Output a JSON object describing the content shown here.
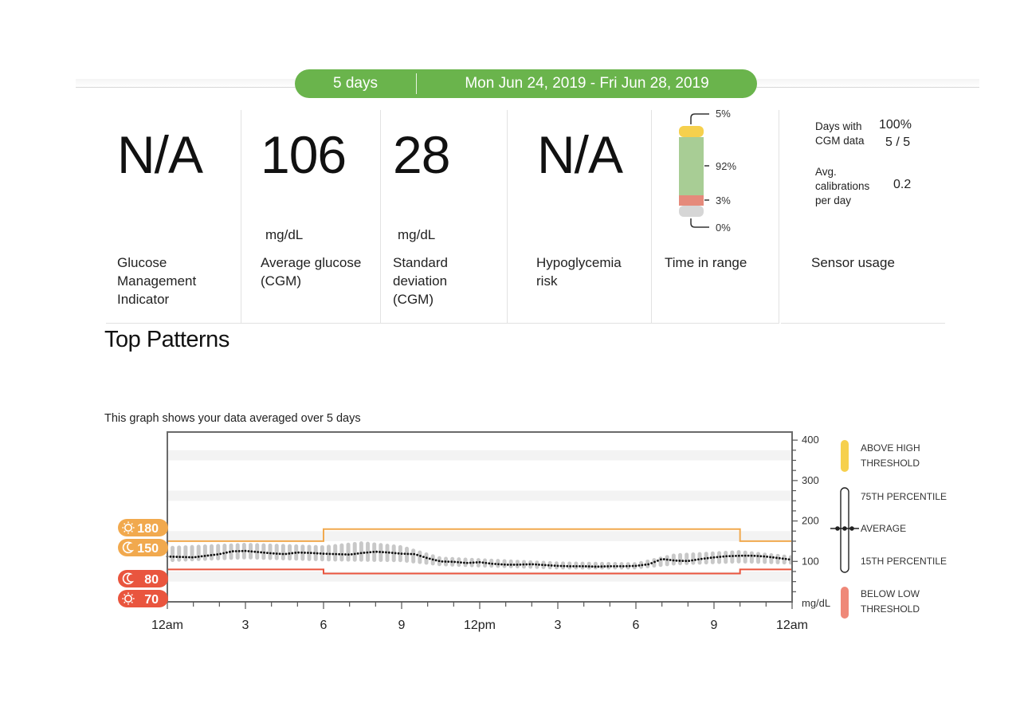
{
  "header": {
    "days": "5 days",
    "date_range": "Mon Jun 24, 2019 - Fri Jun 28, 2019"
  },
  "cards": {
    "gmi": {
      "value": "N/A",
      "label": "Glucose\nManagement\nIndicator"
    },
    "avg": {
      "value": "106",
      "unit": "mg/dL",
      "label": "Average glucose\n(CGM)"
    },
    "sd": {
      "value": "28",
      "unit": "mg/dL",
      "label": "Standard\ndeviation\n(CGM)"
    },
    "hypo": {
      "value": "N/A",
      "label": "Hypoglycemia\nrisk"
    },
    "tir": {
      "label": "Time in range",
      "high": "5%",
      "in_range": "92%",
      "low": "3%",
      "very_low": "0%"
    },
    "sensor": {
      "label": "Sensor usage",
      "days_label": "Days with\nCGM data",
      "days_pct": "100%",
      "days_count": "5 / 5",
      "cal_label": "Avg.\ncalibrations\nper day",
      "cal_value": "0.2"
    }
  },
  "section_title": "Top Patterns",
  "graph_note": "This graph shows your data averaged over 5 days",
  "colors": {
    "green": "#6ab44c",
    "high": "#f6d04d",
    "in_range": "#a8cd95",
    "low": "#e58a7b",
    "very_low": "#d6d6d6",
    "orange": "#f1a94e",
    "red": "#e9553e"
  },
  "chart_data": {
    "type": "area",
    "x_ticks": [
      "12am",
      "3",
      "6",
      "9",
      "12pm",
      "3",
      "6",
      "9",
      "12am"
    ],
    "x_range_hours": [
      0,
      24
    ],
    "y_ticks": [
      "400",
      "300",
      "200",
      "100"
    ],
    "y_unit": "mg/dL",
    "ylim": [
      0,
      420
    ],
    "threshold_badges": [
      {
        "kind": "day-high",
        "value": "180",
        "icon": "sun-icon"
      },
      {
        "kind": "night-high",
        "value": "150",
        "icon": "moon-icon"
      },
      {
        "kind": "night-low",
        "value": "80",
        "icon": "moon-icon"
      },
      {
        "kind": "day-low",
        "value": "70",
        "icon": "sun-icon"
      }
    ],
    "high_threshold_line": [
      [
        0,
        150
      ],
      [
        6,
        150
      ],
      [
        6,
        180
      ],
      [
        22,
        180
      ],
      [
        22,
        150
      ],
      [
        24,
        150
      ]
    ],
    "low_threshold_line": [
      [
        0,
        80
      ],
      [
        6,
        80
      ],
      [
        6,
        70
      ],
      [
        22,
        70
      ],
      [
        22,
        80
      ],
      [
        24,
        80
      ]
    ],
    "average_points": [
      [
        0,
        112
      ],
      [
        1,
        110
      ],
      [
        2,
        118
      ],
      [
        2.5,
        125
      ],
      [
        3,
        126
      ],
      [
        3.5,
        123
      ],
      [
        4,
        120
      ],
      [
        4.5,
        118
      ],
      [
        5,
        122
      ],
      [
        5.5,
        121
      ],
      [
        6,
        119
      ],
      [
        6.5,
        118
      ],
      [
        7,
        117
      ],
      [
        7.5,
        121
      ],
      [
        8,
        124
      ],
      [
        8.5,
        122
      ],
      [
        9,
        119
      ],
      [
        9.5,
        118
      ],
      [
        10,
        108
      ],
      [
        10.5,
        100
      ],
      [
        11,
        99
      ],
      [
        11.5,
        96
      ],
      [
        12,
        98
      ],
      [
        12.5,
        94
      ],
      [
        13,
        92
      ],
      [
        13.5,
        92
      ],
      [
        14,
        93
      ],
      [
        14.5,
        91
      ],
      [
        15,
        89
      ],
      [
        15.5,
        88
      ],
      [
        16,
        88
      ],
      [
        16.5,
        87
      ],
      [
        17,
        88
      ],
      [
        17.5,
        88
      ],
      [
        18,
        89
      ],
      [
        18.5,
        93
      ],
      [
        19,
        106
      ],
      [
        19.5,
        102
      ],
      [
        20,
        101
      ],
      [
        20.5,
        106
      ],
      [
        21,
        110
      ],
      [
        21.5,
        113
      ],
      [
        22,
        114
      ],
      [
        22.5,
        114
      ],
      [
        23,
        112
      ],
      [
        23.5,
        108
      ],
      [
        24,
        104
      ]
    ],
    "percentile_band": {
      "p15": [
        [
          0,
          98
        ],
        [
          3,
          105
        ],
        [
          6,
          100
        ],
        [
          9,
          98
        ],
        [
          10.5,
          88
        ],
        [
          12,
          85
        ],
        [
          15,
          80
        ],
        [
          18,
          80
        ],
        [
          19.5,
          90
        ],
        [
          22,
          95
        ],
        [
          24,
          92
        ]
      ],
      "p75": [
        [
          0,
          138
        ],
        [
          3,
          146
        ],
        [
          6,
          140
        ],
        [
          7.5,
          150
        ],
        [
          9,
          140
        ],
        [
          10.5,
          112
        ],
        [
          12,
          108
        ],
        [
          15,
          100
        ],
        [
          18,
          98
        ],
        [
          19.5,
          120
        ],
        [
          22,
          128
        ],
        [
          24,
          115
        ]
      ]
    },
    "legend": [
      {
        "label": "ABOVE HIGH THRESHOLD",
        "color": "#f6d04d"
      },
      {
        "label": "75TH PERCENTILE"
      },
      {
        "label": "AVERAGE"
      },
      {
        "label": "15TH PERCENTILE"
      },
      {
        "label": "BELOW LOW THRESHOLD",
        "color": "#ef8878"
      }
    ]
  }
}
